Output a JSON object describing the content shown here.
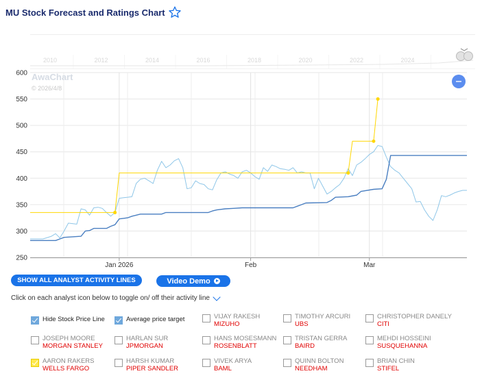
{
  "header": {
    "title": "MU Stock Forecast and Ratings Chart"
  },
  "colors": {
    "price_line": "#8ec6e8",
    "avg_target_line": "#4a7fc1",
    "analyst_line": "#ffd700",
    "button": "#1a73e8",
    "firm_text": "#e00000"
  },
  "watermark": {
    "brand": "AwaChart",
    "date": "© 2026/4/8"
  },
  "chart_data": {
    "type": "line",
    "navigator_years": [
      "2010",
      "2012",
      "2014",
      "2016",
      "2018",
      "2020",
      "2022",
      "2024"
    ],
    "ylim": [
      250,
      600
    ],
    "y_ticks": [
      "250",
      "300",
      "350",
      "400",
      "450",
      "500",
      "550",
      "600"
    ],
    "x_ticks": [
      {
        "label": "Jan 2026",
        "x": 21
      },
      {
        "label": "Feb",
        "x": 52
      },
      {
        "label": "Mar",
        "x": 80
      }
    ],
    "xlim": [
      0,
      103
    ],
    "grid": true,
    "series": [
      {
        "name": "Stock Price",
        "points": [
          [
            0,
            285
          ],
          [
            3,
            285
          ],
          [
            5,
            290
          ],
          [
            6,
            295
          ],
          [
            7,
            287
          ],
          [
            8,
            300
          ],
          [
            9,
            315
          ],
          [
            10,
            314
          ],
          [
            11,
            313
          ],
          [
            12,
            342
          ],
          [
            13,
            340
          ],
          [
            14,
            330
          ],
          [
            15,
            344
          ],
          [
            16,
            345
          ],
          [
            17,
            343
          ],
          [
            18,
            335
          ],
          [
            19,
            328
          ],
          [
            20,
            335
          ],
          [
            21,
            362
          ],
          [
            22,
            363
          ],
          [
            23,
            364
          ],
          [
            24,
            365
          ],
          [
            25,
            390
          ],
          [
            26,
            398
          ],
          [
            27,
            400
          ],
          [
            28,
            395
          ],
          [
            29,
            390
          ],
          [
            30,
            415
          ],
          [
            31,
            432
          ],
          [
            32,
            420
          ],
          [
            33,
            425
          ],
          [
            34,
            433
          ],
          [
            35,
            437
          ],
          [
            36,
            420
          ],
          [
            37,
            380
          ],
          [
            38,
            382
          ],
          [
            39,
            395
          ],
          [
            40,
            390
          ],
          [
            41,
            388
          ],
          [
            42,
            380
          ],
          [
            43,
            378
          ],
          [
            44,
            397
          ],
          [
            45,
            410
          ],
          [
            46,
            412
          ],
          [
            47,
            408
          ],
          [
            48,
            405
          ],
          [
            49,
            400
          ],
          [
            50,
            412
          ],
          [
            51,
            415
          ],
          [
            52,
            410
          ],
          [
            53,
            403
          ],
          [
            54,
            398
          ],
          [
            55,
            420
          ],
          [
            56,
            413
          ],
          [
            57,
            425
          ],
          [
            58,
            422
          ],
          [
            59,
            418
          ],
          [
            60,
            417
          ],
          [
            61,
            415
          ],
          [
            62,
            420
          ],
          [
            63,
            410
          ],
          [
            64,
            412
          ],
          [
            65,
            410
          ],
          [
            66,
            410
          ],
          [
            67,
            380
          ],
          [
            68,
            400
          ],
          [
            69,
            385
          ],
          [
            70,
            370
          ],
          [
            71,
            375
          ],
          [
            72,
            382
          ],
          [
            73,
            388
          ],
          [
            74,
            400
          ],
          [
            75,
            418
          ],
          [
            76,
            405
          ],
          [
            77,
            425
          ],
          [
            78,
            430
          ],
          [
            79,
            437
          ],
          [
            80,
            445
          ],
          [
            81,
            450
          ],
          [
            82,
            462
          ],
          [
            83,
            460
          ],
          [
            84,
            440
          ],
          [
            85,
            422
          ],
          [
            86,
            415
          ],
          [
            87,
            410
          ],
          [
            88,
            400
          ],
          [
            89,
            390
          ],
          [
            90,
            380
          ],
          [
            91,
            355
          ],
          [
            92,
            356
          ],
          [
            93,
            340
          ],
          [
            94,
            328
          ],
          [
            95,
            320
          ],
          [
            96,
            340
          ],
          [
            97,
            367
          ],
          [
            98,
            365
          ],
          [
            99,
            368
          ],
          [
            100,
            372
          ],
          [
            101,
            375
          ],
          [
            102,
            377
          ],
          [
            103,
            377
          ]
        ]
      },
      {
        "name": "Average price target",
        "points": [
          [
            0,
            282
          ],
          [
            6,
            282
          ],
          [
            7,
            285
          ],
          [
            8,
            288
          ],
          [
            12,
            290
          ],
          [
            13,
            300
          ],
          [
            14,
            301
          ],
          [
            15,
            305
          ],
          [
            18,
            305
          ],
          [
            19,
            309
          ],
          [
            20,
            312
          ],
          [
            21,
            323
          ],
          [
            22,
            324
          ],
          [
            23,
            325
          ],
          [
            24,
            328
          ],
          [
            25,
            330
          ],
          [
            26,
            332
          ],
          [
            31,
            332
          ],
          [
            32,
            335
          ],
          [
            42,
            335
          ],
          [
            43,
            338
          ],
          [
            44,
            340
          ],
          [
            46,
            342
          ],
          [
            48,
            343
          ],
          [
            50,
            344
          ],
          [
            62,
            344
          ],
          [
            63,
            347
          ],
          [
            64,
            350
          ],
          [
            65,
            353
          ],
          [
            70,
            354
          ],
          [
            71,
            358
          ],
          [
            72,
            364
          ],
          [
            75,
            365
          ],
          [
            77,
            368
          ],
          [
            78,
            375
          ],
          [
            81,
            379
          ],
          [
            83,
            380
          ],
          [
            84,
            398
          ],
          [
            85,
            443
          ],
          [
            103,
            443
          ]
        ]
      },
      {
        "name": "Aaron Rakers - Wells Fargo",
        "points": [
          [
            0,
            335
          ],
          [
            20,
            335
          ],
          [
            21,
            410
          ],
          [
            75,
            410
          ],
          [
            76,
            470
          ],
          [
            81,
            470
          ],
          [
            82,
            550
          ]
        ],
        "markers": [
          [
            20,
            335
          ],
          [
            75,
            410
          ],
          [
            81,
            470
          ],
          [
            82,
            550
          ]
        ]
      }
    ]
  },
  "controls": {
    "show_lines_button": "SHOW ALL ANALYST ACTIVITY LINES",
    "video_button": "Video Demo",
    "hint": "Click on each analyst icon below to toggle on/ off their activity line"
  },
  "toggles": [
    {
      "label": "Hide Stock Price Line",
      "checked": true
    },
    {
      "label": "Average price target",
      "checked": true
    }
  ],
  "analysts": [
    {
      "name": "VIJAY RAKESH",
      "firm": "MIZUHO",
      "checked": false
    },
    {
      "name": "TIMOTHY ARCURI",
      "firm": "UBS",
      "checked": false
    },
    {
      "name": "CHRISTOPHER DANELY",
      "firm": "CITI",
      "checked": false
    },
    {
      "name": "JOSEPH MOORE",
      "firm": "MORGAN STANLEY",
      "checked": false
    },
    {
      "name": "HARLAN SUR",
      "firm": "JPMORGAN",
      "checked": false
    },
    {
      "name": "HANS MOSESMANN",
      "firm": "ROSENBLATT",
      "checked": false
    },
    {
      "name": "TRISTAN GERRA",
      "firm": "BAIRD",
      "checked": false
    },
    {
      "name": "MEHDI HOSSEINI",
      "firm": "SUSQUEHANNA",
      "checked": false
    },
    {
      "name": "AARON RAKERS",
      "firm": "WELLS FARGO",
      "checked": true
    },
    {
      "name": "HARSH KUMAR",
      "firm": "PIPER SANDLER",
      "checked": false
    },
    {
      "name": "VIVEK ARYA",
      "firm": "BAML",
      "checked": false
    },
    {
      "name": "QUINN BOLTON",
      "firm": "NEEDHAM",
      "checked": false
    },
    {
      "name": "BRIAN CHIN",
      "firm": "STIFEL",
      "checked": false
    }
  ]
}
